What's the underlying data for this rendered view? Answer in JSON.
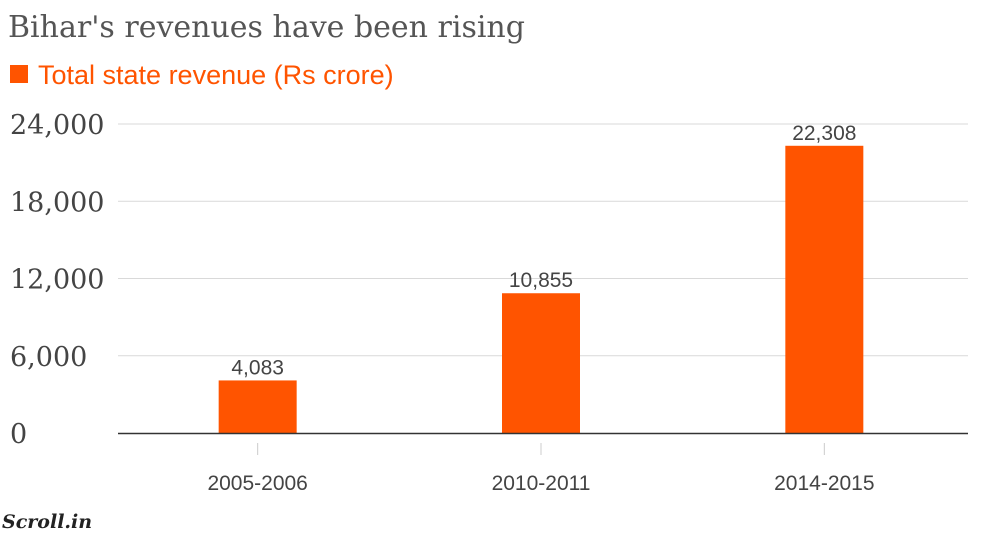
{
  "brand": "Scroll.in",
  "colors": {
    "bar": "#ff5400",
    "legend_text": "#ff5400",
    "grid": "#d9d9d9",
    "axis": "#333333"
  },
  "chart_data": {
    "type": "bar",
    "title": "Bihar's revenues have been rising",
    "categories": [
      "2005-2006",
      "2010-2011",
      "2014-2015"
    ],
    "series": [
      {
        "name": "Total state revenue (Rs crore)",
        "values": [
          4083,
          10855,
          22308
        ]
      }
    ],
    "data_labels": [
      "4,083",
      "10,855",
      "22,308"
    ],
    "y_ticks": [
      0,
      6000,
      12000,
      18000,
      24000
    ],
    "y_tick_labels": [
      "0",
      "6,000",
      "12,000",
      "18,000",
      "24,000"
    ],
    "ylim": [
      0,
      24000
    ],
    "grid": true,
    "legend_position": "top-left"
  }
}
